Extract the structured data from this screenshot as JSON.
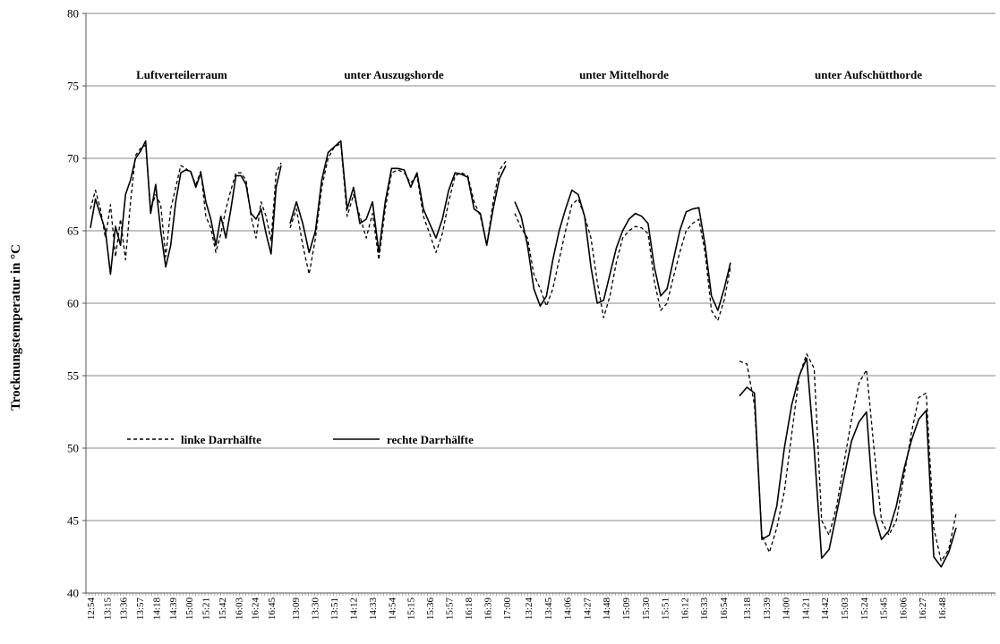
{
  "chart_data": {
    "type": "line",
    "ylabel": "Trocknungstemperatur in °C",
    "ylim": [
      40,
      80
    ],
    "yticks": [
      40,
      45,
      50,
      55,
      60,
      65,
      70,
      75,
      80
    ],
    "grid": "horizontal",
    "legend": [
      {
        "label": "linke Darrhälfte",
        "style": "dashed"
      },
      {
        "label": "rechte Darrhälfte",
        "style": "solid"
      }
    ],
    "sections": [
      {
        "title": "Luftverteilerraum",
        "x_labels": [
          "12:54",
          "13:15",
          "13:36",
          "13:57",
          "14:18",
          "14:39",
          "15:00",
          "15:21",
          "15:42",
          "16:03",
          "16:24",
          "16:45"
        ],
        "series": [
          {
            "name": "linke Darrhälfte",
            "values": [
              66.5,
              67.8,
              66.5,
              64.5,
              66.8,
              63.2,
              65.8,
              63.0,
              67.0,
              70.2,
              70.7,
              70.9,
              66.5,
              67.5,
              66.8,
              63.2,
              66.5,
              68.0,
              69.5,
              69.3,
              69.0,
              68.2,
              69.1,
              66.0,
              65.2,
              63.5,
              64.8,
              66.5,
              67.8,
              69.0,
              69.0,
              68.5,
              66.0,
              64.5,
              67.0,
              66.0,
              64.3,
              69.0,
              69.7
            ]
          },
          {
            "name": "rechte Darrhälfte",
            "values": [
              65.2,
              67.2,
              66.1,
              65.0,
              62.0,
              65.3,
              64.0,
              67.5,
              68.5,
              70.0,
              70.5,
              71.2,
              66.2,
              68.2,
              65.0,
              62.5,
              64.0,
              67.0,
              69.0,
              69.2,
              69.1,
              68.0,
              69.0,
              67.0,
              65.8,
              64.0,
              66.0,
              64.5,
              66.5,
              68.8,
              68.8,
              68.2,
              66.2,
              65.8,
              66.5,
              64.8,
              63.4,
              68.0,
              69.5
            ]
          }
        ]
      },
      {
        "title": "unter Auszugshorde",
        "x_labels": [
          "13:09",
          "13:30",
          "13:51",
          "14:12",
          "14:33",
          "14:54",
          "15:15",
          "15:36",
          "15:57",
          "16:18",
          "16:39",
          "17:00"
        ],
        "series": [
          {
            "name": "linke Darrhälfte",
            "values": [
              65.2,
              66.5,
              64.0,
              62.0,
              64.5,
              68.0,
              70.0,
              70.8,
              71.0,
              66.0,
              67.5,
              66.0,
              64.5,
              66.2,
              63.0,
              66.5,
              69.0,
              69.2,
              69.0,
              68.3,
              68.8,
              66.0,
              64.8,
              63.5,
              64.8,
              67.0,
              68.8,
              69.0,
              68.8,
              67.0,
              66.0,
              64.0,
              67.0,
              69.2,
              69.8
            ]
          },
          {
            "name": "rechte Darrhälfte",
            "values": [
              65.5,
              67.0,
              65.5,
              63.5,
              65.0,
              68.5,
              70.4,
              70.8,
              71.2,
              66.5,
              68.0,
              65.5,
              65.8,
              67.0,
              63.5,
              67.0,
              69.3,
              69.3,
              69.2,
              68.0,
              69.0,
              66.5,
              65.5,
              64.5,
              65.8,
              67.8,
              69.0,
              68.9,
              68.7,
              66.5,
              66.2,
              64.0,
              66.5,
              68.6,
              69.5
            ]
          }
        ]
      },
      {
        "title": "unter Mittelhorde",
        "x_labels": [
          "13:24",
          "13:45",
          "14:06",
          "14:27",
          "14:48",
          "15:09",
          "15:30",
          "15:51",
          "16:12",
          "16:33",
          "16:54"
        ],
        "series": [
          {
            "name": "linke Darrhälfte",
            "values": [
              66.2,
              65.2,
              64.5,
              62.0,
              61.0,
              59.8,
              61.0,
              63.0,
              65.0,
              66.8,
              67.2,
              66.0,
              64.5,
              61.5,
              59.0,
              60.5,
              62.8,
              64.5,
              65.0,
              65.3,
              65.2,
              64.8,
              61.5,
              59.5,
              60.0,
              61.8,
              63.5,
              65.0,
              65.5,
              65.8,
              63.5,
              59.5,
              58.8,
              60.2,
              62.5
            ]
          },
          {
            "name": "rechte Darrhälfte",
            "values": [
              67.0,
              66.0,
              64.0,
              61.0,
              59.8,
              60.5,
              63.0,
              65.0,
              66.5,
              67.8,
              67.5,
              66.0,
              62.5,
              60.0,
              60.2,
              62.0,
              63.8,
              65.0,
              65.8,
              66.2,
              66.0,
              65.5,
              62.5,
              60.5,
              61.0,
              63.0,
              65.0,
              66.3,
              66.5,
              66.6,
              64.0,
              60.5,
              59.5,
              61.0,
              62.8
            ]
          }
        ]
      },
      {
        "title": "unter Aufschütthorde",
        "x_labels": [
          "13:18",
          "13:39",
          "14:00",
          "14:21",
          "14:42",
          "15:03",
          "15:24",
          "15:45",
          "16:06",
          "16:27",
          "16:48"
        ],
        "series": [
          {
            "name": "linke Darrhälfte",
            "values": [
              56.0,
              55.8,
              53.0,
              44.0,
              42.8,
              44.5,
              47.0,
              51.0,
              55.0,
              56.5,
              55.5,
              45.0,
              44.0,
              46.0,
              49.0,
              52.0,
              54.5,
              55.4,
              50.0,
              45.0,
              44.0,
              45.0,
              48.0,
              51.0,
              53.5,
              53.8,
              44.5,
              42.2,
              43.0,
              45.5
            ]
          },
          {
            "name": "rechte Darrhälfte",
            "values": [
              53.6,
              54.2,
              53.8,
              43.7,
              44.0,
              46.0,
              50.0,
              53.0,
              55.0,
              56.2,
              50.0,
              42.4,
              43.0,
              45.5,
              48.0,
              50.5,
              51.8,
              52.5,
              45.5,
              43.7,
              44.3,
              46.0,
              48.5,
              50.5,
              52.0,
              52.6,
              42.5,
              41.8,
              42.8,
              44.5
            ]
          }
        ]
      }
    ]
  }
}
